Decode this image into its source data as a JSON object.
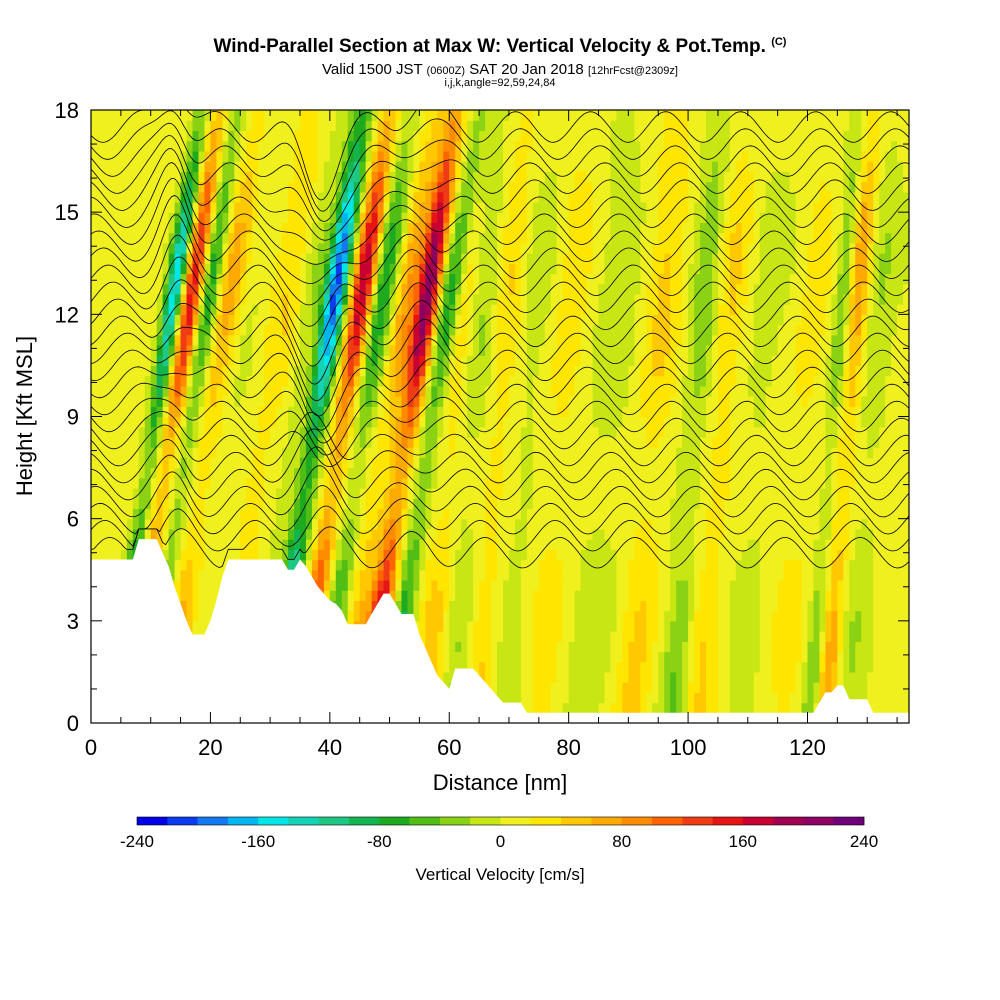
{
  "titles": {
    "main": "Wind-Parallel Section at Max W: Vertical Velocity & Pot.Temp.",
    "copyright": "(C)",
    "valid_prefix": "Valid 1500 JST",
    "valid_utc": "(0600Z)",
    "valid_date": "SAT 20 Jan 2018",
    "forecast": "[12hrFcst@2309z]",
    "indices": "i,j,k,angle=92,59,24,84"
  },
  "chart_data": {
    "type": "heatmap",
    "xlabel": "Distance [nm]",
    "ylabel": "Height [Kft MSL]",
    "xlim": [
      0,
      137
    ],
    "ylim": [
      0,
      18
    ],
    "xticks": [
      0,
      20,
      40,
      60,
      80,
      100,
      120
    ],
    "yticks": [
      0,
      3,
      6,
      9,
      12,
      15,
      18
    ],
    "colorbar": {
      "label": "Vertical Velocity [cm/s]",
      "range": [
        -240,
        240
      ],
      "tick_values": [
        -240,
        -160,
        -80,
        0,
        80,
        160,
        240
      ],
      "tick_labels": [
        "-240",
        "-160",
        "-80",
        "0",
        "80",
        "160",
        "240"
      ],
      "colors": [
        "#0000e6",
        "#0a3cf0",
        "#1478f0",
        "#00b4f0",
        "#00e6e6",
        "#14d2b4",
        "#1ec882",
        "#14b450",
        "#1eaa1e",
        "#50be14",
        "#8cd214",
        "#c8e614",
        "#f0f01e",
        "#ffe600",
        "#ffc800",
        "#ffaa00",
        "#ff8c00",
        "#ff6400",
        "#f03c14",
        "#e61414",
        "#c80032",
        "#a00050",
        "#8c0064",
        "#6e0078"
      ]
    },
    "terrain": [
      [
        0,
        4.8
      ],
      [
        7,
        4.8
      ],
      [
        8,
        5.4
      ],
      [
        11,
        5.4
      ],
      [
        12,
        5.0
      ],
      [
        13,
        4.6
      ],
      [
        14,
        4.0
      ],
      [
        15,
        3.5
      ],
      [
        16,
        3.0
      ],
      [
        17,
        2.6
      ],
      [
        19,
        2.6
      ],
      [
        20,
        3.0
      ],
      [
        21,
        3.6
      ],
      [
        22,
        4.3
      ],
      [
        23,
        4.8
      ],
      [
        30,
        4.8
      ],
      [
        32,
        4.8
      ],
      [
        33,
        4.5
      ],
      [
        34,
        4.5
      ],
      [
        35,
        4.8
      ],
      [
        36,
        4.6
      ],
      [
        37,
        4.3
      ],
      [
        38,
        4.0
      ],
      [
        39,
        3.8
      ],
      [
        40,
        3.6
      ],
      [
        41,
        3.5
      ],
      [
        42,
        3.3
      ],
      [
        43,
        2.9
      ],
      [
        46,
        2.9
      ],
      [
        47,
        3.2
      ],
      [
        48,
        3.5
      ],
      [
        49,
        3.8
      ],
      [
        50,
        3.8
      ],
      [
        51,
        3.5
      ],
      [
        52,
        3.2
      ],
      [
        54,
        3.2
      ],
      [
        55,
        2.6
      ],
      [
        56,
        2.2
      ],
      [
        57,
        1.8
      ],
      [
        58,
        1.4
      ],
      [
        59,
        1.2
      ],
      [
        60,
        1.0
      ],
      [
        61,
        1.6
      ],
      [
        64,
        1.6
      ],
      [
        65,
        1.4
      ],
      [
        66,
        1.2
      ],
      [
        67,
        1.0
      ],
      [
        68,
        0.8
      ],
      [
        69,
        0.6
      ],
      [
        72,
        0.6
      ],
      [
        73,
        0.3
      ],
      [
        121,
        0.3
      ],
      [
        122,
        0.6
      ],
      [
        123,
        0.9
      ],
      [
        124,
        0.9
      ],
      [
        125,
        1.1
      ],
      [
        126,
        1.1
      ],
      [
        127,
        0.7
      ],
      [
        130,
        0.7
      ],
      [
        131,
        0.3
      ],
      [
        137,
        0.3
      ]
    ],
    "w_features": [
      {
        "x": 10,
        "w": -160,
        "spread": 1.4
      },
      {
        "x": 13,
        "w": 150,
        "spread": 1.6
      },
      {
        "x": 16,
        "w": -90,
        "spread": 1.6
      },
      {
        "x": 19.5,
        "w": 70,
        "spread": 2.5
      },
      {
        "x": 22,
        "w": -20,
        "spread": 3
      },
      {
        "x": 29,
        "w": 35,
        "spread": 3
      },
      {
        "x": 33,
        "w": -30,
        "spread": 2
      },
      {
        "x": 37,
        "w": -220,
        "spread": 1.8
      },
      {
        "x": 41.5,
        "w": 170,
        "spread": 1.8
      },
      {
        "x": 45,
        "w": -90,
        "spread": 2
      },
      {
        "x": 49,
        "w": 70,
        "spread": 2
      },
      {
        "x": 52.5,
        "w": 210,
        "spread": 1.8
      },
      {
        "x": 56.5,
        "w": -110,
        "spread": 1.8
      },
      {
        "x": 60,
        "w": 50,
        "spread": 2.5
      },
      {
        "x": 64,
        "w": -40,
        "spread": 3
      },
      {
        "x": 68,
        "w": 45,
        "spread": 3
      },
      {
        "x": 73,
        "w": -30,
        "spread": 4
      },
      {
        "x": 78,
        "w": 30,
        "spread": 4
      },
      {
        "x": 86,
        "w": -25,
        "spread": 4
      },
      {
        "x": 94,
        "w": 40,
        "spread": 3
      },
      {
        "x": 101,
        "w": -55,
        "spread": 2.5
      },
      {
        "x": 105,
        "w": 40,
        "spread": 3
      },
      {
        "x": 112,
        "w": -20,
        "spread": 4
      },
      {
        "x": 119,
        "w": 20,
        "spread": 4
      },
      {
        "x": 124,
        "w": -60,
        "spread": 1.5
      },
      {
        "x": 126.5,
        "w": 80,
        "spread": 1.8
      },
      {
        "x": 130,
        "w": -30,
        "spread": 3
      }
    ]
  }
}
